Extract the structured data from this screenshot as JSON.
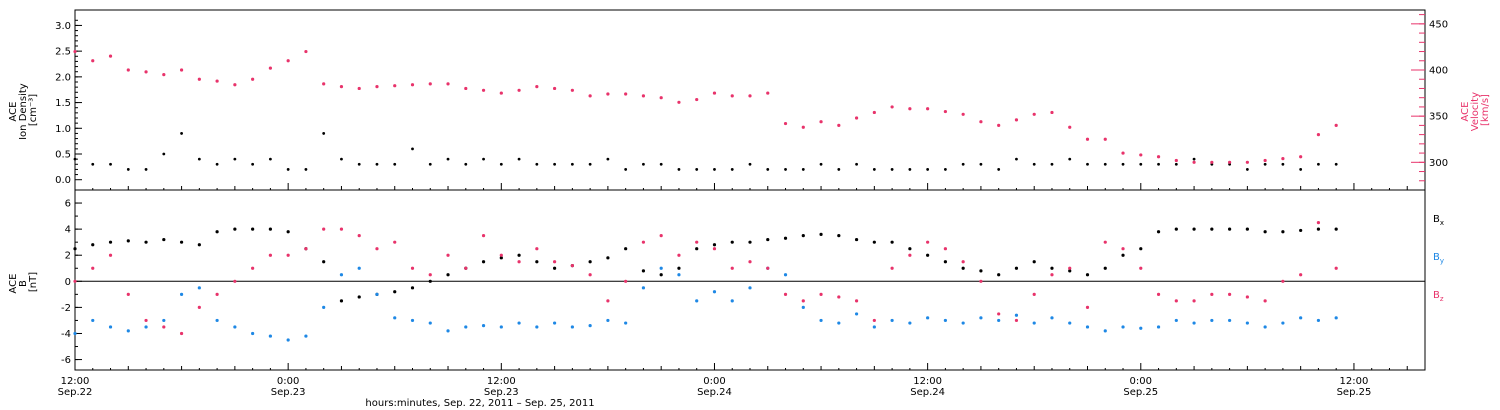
{
  "colors": {
    "axis": "#000000",
    "density": "#000000",
    "velocity": "#e8336b",
    "bx": "#000000",
    "by": "#1e88e5",
    "bz": "#e8336b"
  },
  "x_axis": {
    "title": "hours:minutes, Sep. 22, 2011 – Sep. 25, 2011",
    "ticks": [
      {
        "hours": 0,
        "time": "12:00",
        "date": "Sep.22"
      },
      {
        "hours": 12,
        "time": "0:00",
        "date": "Sep.23"
      },
      {
        "hours": 24,
        "time": "12:00",
        "date": "Sep.23"
      },
      {
        "hours": 36,
        "time": "0:00",
        "date": "Sep.24"
      },
      {
        "hours": 48,
        "time": "12:00",
        "date": "Sep.24"
      },
      {
        "hours": 60,
        "time": "0:00",
        "date": "Sep.25"
      },
      {
        "hours": 72,
        "time": "12:00",
        "date": "Sep.25"
      }
    ]
  },
  "chart_data": [
    {
      "type": "scatter",
      "panel": "top",
      "x_unit": "hours since Sep. 22, 2011 12:00",
      "xlim": [
        0,
        76
      ],
      "left_axis": {
        "label_lines": [
          "ACE",
          "Ion Density",
          "[cm⁻³]"
        ],
        "ylim": [
          -0.2,
          3.3
        ],
        "ticks": [
          "0.0",
          "0.5",
          "1.0",
          "1.5",
          "2.0",
          "2.5",
          "3.0"
        ]
      },
      "right_axis": {
        "label_lines": [
          "ACE",
          "Velocity",
          "[km/s]"
        ],
        "ylim": [
          270,
          465
        ],
        "ticks": [
          "300",
          "350",
          "400",
          "450"
        ]
      },
      "series": [
        {
          "name": "Ion Density",
          "axis": "left",
          "x": [
            0,
            1,
            2,
            3,
            4,
            5,
            6,
            7,
            8,
            9,
            10,
            11,
            12,
            13,
            14,
            15,
            16,
            17,
            18,
            19,
            20,
            21,
            22,
            23,
            24,
            25,
            26,
            27,
            28,
            29,
            30,
            31,
            32,
            33,
            34,
            35,
            36,
            37,
            38,
            39,
            40,
            41,
            42,
            43,
            44,
            45,
            46,
            47,
            48,
            49,
            50,
            51,
            52,
            53,
            54,
            55,
            56,
            57,
            58,
            59,
            60,
            61,
            62,
            63,
            64,
            65,
            66,
            67,
            68,
            69,
            70,
            71
          ],
          "y": [
            0.4,
            0.3,
            0.3,
            0.2,
            0.2,
            0.5,
            0.9,
            0.4,
            0.3,
            0.4,
            0.3,
            0.4,
            0.2,
            0.2,
            0.9,
            0.4,
            0.3,
            0.3,
            0.3,
            0.6,
            0.3,
            0.4,
            0.3,
            0.4,
            0.3,
            0.4,
            0.3,
            0.3,
            0.3,
            0.3,
            0.4,
            0.2,
            0.3,
            0.3,
            0.2,
            0.2,
            0.2,
            0.2,
            0.3,
            0.2,
            0.2,
            0.2,
            0.3,
            0.2,
            0.3,
            0.2,
            0.2,
            0.2,
            0.2,
            0.2,
            0.3,
            0.3,
            0.2,
            0.4,
            0.3,
            0.3,
            0.4,
            0.3,
            0.3,
            0.3,
            0.3,
            0.3,
            0.3,
            0.4,
            0.3,
            0.3,
            0.2,
            0.3,
            0.3,
            0.2,
            0.3,
            0.3
          ]
        },
        {
          "name": "Velocity",
          "axis": "right",
          "x": [
            0,
            1,
            2,
            3,
            4,
            5,
            6,
            7,
            8,
            9,
            10,
            11,
            12,
            13,
            14,
            15,
            16,
            17,
            18,
            19,
            20,
            21,
            22,
            23,
            24,
            25,
            26,
            27,
            28,
            29,
            30,
            31,
            32,
            33,
            34,
            35,
            36,
            37,
            38,
            39,
            40,
            41,
            42,
            43,
            44,
            45,
            46,
            47,
            48,
            49,
            50,
            51,
            52,
            53,
            54,
            55,
            56,
            57,
            58,
            59,
            60,
            61,
            62,
            63,
            64,
            65,
            66,
            67,
            68,
            69,
            70,
            71
          ],
          "y": [
            420,
            410,
            415,
            400,
            398,
            395,
            400,
            390,
            388,
            384,
            390,
            402,
            410,
            420,
            385,
            382,
            380,
            382,
            383,
            384,
            385,
            385,
            380,
            378,
            375,
            378,
            382,
            380,
            378,
            372,
            374,
            374,
            372,
            370,
            365,
            368,
            375,
            372,
            372,
            375,
            342,
            338,
            344,
            340,
            348,
            354,
            360,
            358,
            358,
            355,
            352,
            344,
            340,
            346,
            352,
            354,
            338,
            325,
            325,
            310,
            308,
            306,
            302,
            300,
            300,
            300,
            300,
            302,
            304,
            306,
            330,
            340
          ]
        }
      ]
    },
    {
      "type": "scatter",
      "panel": "bottom",
      "x_unit": "hours since Sep. 22, 2011 12:00",
      "xlim": [
        0,
        76
      ],
      "ylim": [
        -6.8,
        7
      ],
      "left_axis": {
        "label_lines": [
          "ACE",
          "B",
          "[nT]"
        ],
        "ticks": [
          "-6",
          "-4",
          "-2",
          "0",
          "2",
          "4",
          "6"
        ]
      },
      "series": [
        {
          "name": "Bx",
          "legend": {
            "base": "B",
            "sub": "x"
          },
          "x": [
            0,
            1,
            2,
            3,
            4,
            5,
            6,
            7,
            8,
            9,
            10,
            11,
            12,
            13,
            14,
            15,
            16,
            17,
            18,
            19,
            20,
            21,
            22,
            23,
            24,
            25,
            26,
            27,
            28,
            29,
            30,
            31,
            32,
            33,
            34,
            35,
            36,
            37,
            38,
            39,
            40,
            41,
            42,
            43,
            44,
            45,
            46,
            47,
            48,
            49,
            50,
            51,
            52,
            53,
            54,
            55,
            56,
            57,
            58,
            59,
            60,
            61,
            62,
            63,
            64,
            65,
            66,
            67,
            68,
            69,
            70,
            71
          ],
          "y": [
            2.5,
            2.8,
            3,
            3.1,
            3,
            3.2,
            3,
            2.8,
            3.8,
            4,
            4,
            4,
            3.8,
            2.5,
            1.5,
            -1.5,
            -1.2,
            -1,
            -0.8,
            -0.5,
            0,
            0.5,
            1,
            1.5,
            1.8,
            2,
            1.5,
            1,
            1.2,
            1.5,
            1.8,
            2.5,
            0.8,
            0.5,
            1,
            2.5,
            2.8,
            3,
            3,
            3.2,
            3.3,
            3.5,
            3.6,
            3.5,
            3.2,
            3,
            3,
            2.5,
            2,
            1.5,
            1,
            0.8,
            0.5,
            1,
            1.5,
            1,
            0.8,
            0.5,
            1,
            2,
            2.5,
            3.8,
            4,
            4,
            4,
            4,
            4,
            3.8,
            3.8,
            3.9,
            4,
            4
          ]
        },
        {
          "name": "By",
          "legend": {
            "base": "B",
            "sub": "y"
          },
          "x": [
            0,
            1,
            2,
            3,
            4,
            5,
            6,
            7,
            8,
            9,
            10,
            11,
            12,
            13,
            14,
            15,
            16,
            17,
            18,
            19,
            20,
            21,
            22,
            23,
            24,
            25,
            26,
            27,
            28,
            29,
            30,
            31,
            32,
            33,
            34,
            35,
            36,
            37,
            38,
            39,
            40,
            41,
            42,
            43,
            44,
            45,
            46,
            47,
            48,
            49,
            50,
            51,
            52,
            53,
            54,
            55,
            56,
            57,
            58,
            59,
            60,
            61,
            62,
            63,
            64,
            65,
            66,
            67,
            68,
            69,
            70,
            71
          ],
          "y": [
            -4,
            -3,
            -3.5,
            -3.8,
            -3.5,
            -3,
            -1,
            -0.5,
            -3,
            -3.5,
            -4,
            -4.2,
            -4.5,
            -4.2,
            -2,
            0.5,
            1,
            -1,
            -2.8,
            -3,
            -3.2,
            -3.8,
            -3.5,
            -3.4,
            -3.5,
            -3.2,
            -3.5,
            -3.2,
            -3.5,
            -3.4,
            -3,
            -3.2,
            -0.5,
            1,
            0.5,
            -1.5,
            -0.8,
            -1.5,
            -0.5,
            1,
            0.5,
            -2,
            -3,
            -3.2,
            -2.5,
            -3.5,
            -3,
            -3.2,
            -2.8,
            -3,
            -3.2,
            -2.8,
            -3,
            -2.6,
            -3.2,
            -2.8,
            -3.2,
            -3.5,
            -3.8,
            -3.5,
            -3.6,
            -3.5,
            -3,
            -3.2,
            -3,
            -3,
            -3.2,
            -3.5,
            -3.2,
            -2.8,
            -3,
            -2.8
          ]
        },
        {
          "name": "Bz",
          "legend": {
            "base": "B",
            "sub": "z"
          },
          "x": [
            0,
            1,
            2,
            3,
            4,
            5,
            6,
            7,
            8,
            9,
            10,
            11,
            12,
            13,
            14,
            15,
            16,
            17,
            18,
            19,
            20,
            21,
            22,
            23,
            24,
            25,
            26,
            27,
            28,
            29,
            30,
            31,
            32,
            33,
            34,
            35,
            36,
            37,
            38,
            39,
            40,
            41,
            42,
            43,
            44,
            45,
            46,
            47,
            48,
            49,
            50,
            51,
            52,
            53,
            54,
            55,
            56,
            57,
            58,
            59,
            60,
            61,
            62,
            63,
            64,
            65,
            66,
            67,
            68,
            69,
            70,
            71
          ],
          "y": [
            0,
            1,
            2,
            -1,
            -3,
            -3.5,
            -4,
            -2,
            -1,
            0,
            1,
            2,
            2,
            2.5,
            4,
            4,
            3.5,
            2.5,
            3,
            1,
            0.5,
            2,
            1,
            3.5,
            2,
            1.5,
            2.5,
            1.5,
            1.2,
            0.5,
            -1.5,
            0,
            3,
            3.5,
            2,
            3,
            2.5,
            1,
            1.5,
            1,
            -1,
            -1.5,
            -1,
            -1.2,
            -1.5,
            -3,
            1,
            2,
            3,
            2.5,
            1.5,
            0,
            -2.5,
            -3,
            -1,
            0.5,
            1,
            -2,
            3,
            2.5,
            1,
            -1,
            -1.5,
            -1.5,
            -1,
            -1,
            -1.2,
            -1.5,
            0,
            0.5,
            4.5,
            1
          ]
        }
      ]
    }
  ]
}
